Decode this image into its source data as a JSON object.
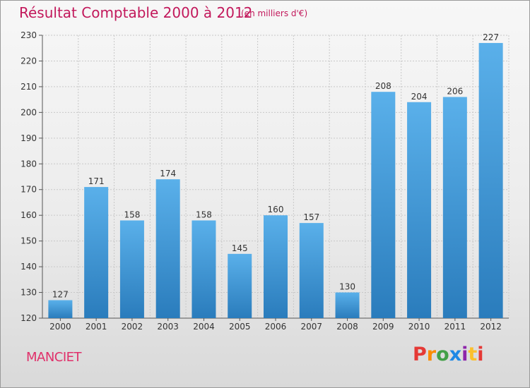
{
  "header": {
    "title": "Résultat Comptable 2000 à 2012",
    "subtitle": "(en milliers d'€)"
  },
  "footer": {
    "town": "MANCIET",
    "brand": "Proxiti"
  },
  "colors": {
    "title": "#c2185b",
    "bar_light": "#5ab0ea",
    "bar_dark": "#2a7cbc",
    "logo_p": "#e53935",
    "logo_r": "#fb8c00",
    "logo_o": "#43a047",
    "logo_x": "#1e88e5",
    "logo_i": "#8e24aa",
    "logo_t": "#fdd835",
    "logo_i2": "#e53935"
  },
  "chart_data": {
    "type": "bar",
    "title": "Résultat Comptable 2000 à 2012",
    "subtitle": "(en milliers d'€)",
    "categories": [
      "2000",
      "2001",
      "2002",
      "2003",
      "2004",
      "2005",
      "2006",
      "2007",
      "2008",
      "2009",
      "2010",
      "2011",
      "2012"
    ],
    "values": [
      127,
      171,
      158,
      174,
      158,
      145,
      160,
      157,
      130,
      208,
      204,
      206,
      227
    ],
    "ylim": [
      120,
      230
    ],
    "yticks": [
      120,
      130,
      140,
      150,
      160,
      170,
      180,
      190,
      200,
      210,
      220,
      230
    ],
    "grid": true,
    "xlabel": "",
    "ylabel": ""
  }
}
